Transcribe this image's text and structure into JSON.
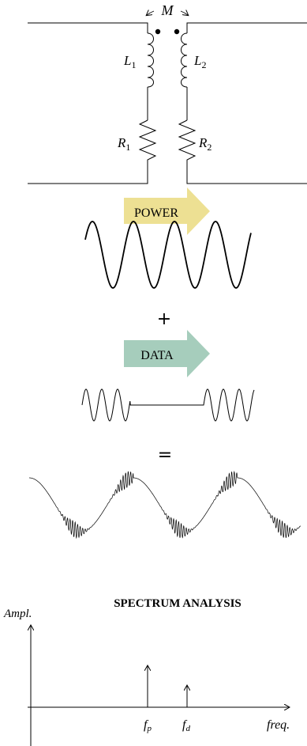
{
  "circuit": {
    "mutual_label": "M",
    "l1_label": "L",
    "l1_sub": "1",
    "l2_label": "L",
    "l2_sub": "2",
    "r1_label": "R",
    "r1_sub": "1",
    "r2_label": "R",
    "r2_sub": "2"
  },
  "power_arrow": {
    "label": "POWER",
    "color": "#ede093"
  },
  "plus_sign": "+",
  "data_arrow": {
    "label": "DATA",
    "color": "#a6cdbc"
  },
  "equals_sign": "=",
  "spectrum": {
    "title": "SPECTRUM ANALYSIS",
    "y_label": "Ampl.",
    "x_label": "freq.",
    "fp_label": "f",
    "fp_sub": "p",
    "fd_label": "f",
    "fd_sub": "d"
  }
}
